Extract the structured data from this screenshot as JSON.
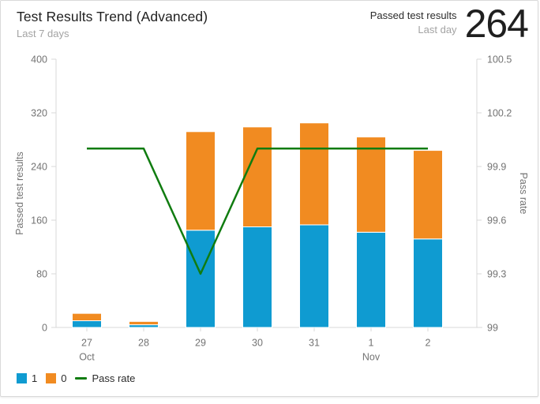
{
  "header": {
    "title": "Test Results Trend (Advanced)",
    "subtitle": "Last 7 days",
    "counter_label": "Passed test results",
    "counter_sublabel": "Last day",
    "counter_value": "264"
  },
  "colors": {
    "series_blue": "#0f9bd1",
    "series_orange": "#f18b21",
    "pass_rate_green": "#107c10",
    "axis_line": "#d9d9d9",
    "tick_label": "#737373",
    "title_text": "#1f1f1f",
    "muted_text": "#a3a3a3",
    "card_border": "#d9d9d9"
  },
  "chart_data": {
    "type": "bar",
    "subtype": "stacked-bars-with-line-overlay",
    "title": "Test Results Trend (Advanced)",
    "categories": [
      "27",
      "28",
      "29",
      "30",
      "31",
      "1",
      "2"
    ],
    "month_labels": {
      "0": "Oct",
      "5": "Nov"
    },
    "series": [
      {
        "name": "1",
        "type": "bar",
        "color": "#0f9bd1",
        "values": [
          10,
          4,
          145,
          150,
          153,
          142,
          132
        ]
      },
      {
        "name": "0",
        "type": "bar",
        "color": "#f18b21",
        "values": [
          11,
          5,
          147,
          149,
          152,
          142,
          132
        ]
      },
      {
        "name": "Pass rate",
        "type": "line",
        "color": "#107c10",
        "axis": "right",
        "values": [
          100,
          100,
          99.3,
          100,
          100,
          100,
          100
        ]
      }
    ],
    "left_axis": {
      "title": "Passed test results",
      "min": 0,
      "max": 400,
      "ticks": [
        0,
        80,
        160,
        240,
        320,
        400
      ]
    },
    "right_axis": {
      "title": "Pass rate",
      "min": 99,
      "max": 100.5,
      "ticks": [
        99,
        99.3,
        99.6,
        99.9,
        100.2,
        100.5
      ]
    },
    "grid": false,
    "legend_position": "bottom-left",
    "legend": [
      {
        "label": "1",
        "swatch": "square",
        "color": "#0f9bd1"
      },
      {
        "label": "0",
        "swatch": "square",
        "color": "#f18b21"
      },
      {
        "label": "Pass rate",
        "swatch": "line",
        "color": "#107c10"
      }
    ]
  }
}
